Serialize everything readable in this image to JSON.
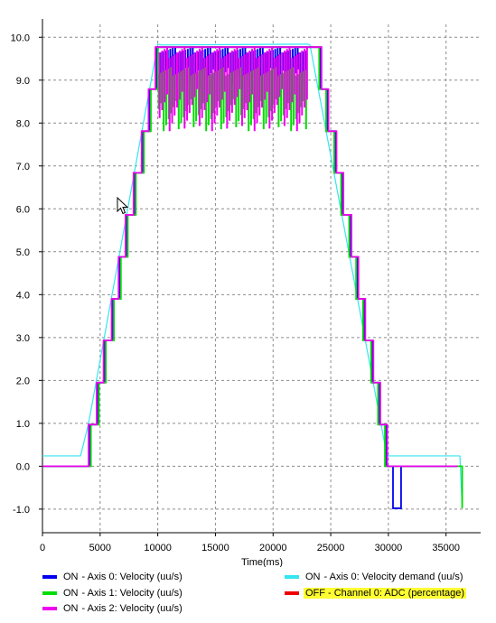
{
  "chart_data": {
    "type": "line",
    "xlabel": "Time(ms)",
    "xlim": [
      0,
      38000
    ],
    "ylim": [
      -1.55,
      10.3
    ],
    "x_ticks": [
      0,
      5000,
      10000,
      15000,
      20000,
      25000,
      30000,
      35000
    ],
    "y_ticks": [
      10.0,
      9.0,
      8.0,
      7.0,
      6.0,
      5.0,
      4.0,
      3.0,
      2.0,
      1.0,
      0.0,
      -1.0
    ],
    "y_tick_labels": [
      "10.0",
      "9.0",
      "8.0",
      "7.0",
      "6.0",
      "5.0",
      "4.0",
      "3.0",
      "2.0",
      "1.0",
      "0.0",
      "-1.0"
    ],
    "grid": true,
    "series": [
      {
        "name": "Axis 0: Velocity demand (uu/s)",
        "color": "#33e6f0",
        "x": [
          0,
          3300,
          4000,
          10000,
          10300,
          23000,
          23200,
          29800,
          30000,
          36200,
          36400
        ],
        "y": [
          0.24,
          0.24,
          1.0,
          9.84,
          9.82,
          9.84,
          9.82,
          0.35,
          0.24,
          0.24,
          -0.98
        ]
      },
      {
        "name": "Axis 0: Velocity (uu/s)",
        "color": "#0000ee",
        "x": [
          0,
          3300,
          4100,
          4800,
          5400,
          6100,
          6700,
          7300,
          8000,
          8700,
          9300,
          9900,
          23500,
          24100,
          24700,
          25400,
          26000,
          26700,
          27300,
          27900,
          28600,
          29200,
          29800,
          30400,
          31100,
          31500,
          36000
        ],
        "y": [
          0.0,
          0.0,
          0.97,
          1.95,
          2.93,
          3.9,
          4.88,
          5.86,
          6.84,
          7.81,
          8.79,
          9.77,
          9.77,
          8.79,
          7.81,
          6.84,
          5.86,
          4.88,
          3.9,
          2.93,
          1.95,
          0.97,
          0.0,
          -0.98,
          0.0,
          0.0,
          0.0
        ]
      },
      {
        "name": "Axis 1: Velocity (uu/s)",
        "color": "#00dd00",
        "x": [
          0,
          3400,
          4200,
          4900,
          5500,
          6200,
          6800,
          7400,
          8100,
          8800,
          9400,
          10000,
          23400,
          24000,
          24600,
          25300,
          25900,
          26600,
          27200,
          27800,
          28500,
          29100,
          29700,
          36100,
          36400
        ],
        "y": [
          0.0,
          0.0,
          0.97,
          1.95,
          2.93,
          3.9,
          4.88,
          5.86,
          6.84,
          7.81,
          8.79,
          9.77,
          9.77,
          8.79,
          7.81,
          6.84,
          5.86,
          4.88,
          3.9,
          2.93,
          1.95,
          0.97,
          0.0,
          0.0,
          -0.98
        ]
      },
      {
        "name": "Axis 2: Velocity (uu/s)",
        "color": "#ee00ee",
        "x": [
          0,
          3200,
          4000,
          4700,
          5300,
          6000,
          6600,
          7200,
          7900,
          8600,
          9200,
          9800,
          23600,
          24200,
          24800,
          25500,
          26100,
          26800,
          27400,
          28000,
          28700,
          29300,
          29900,
          36000
        ],
        "y": [
          0.0,
          0.0,
          0.97,
          1.95,
          2.93,
          3.9,
          4.88,
          5.86,
          6.84,
          7.81,
          8.79,
          9.77,
          9.77,
          8.79,
          7.81,
          6.84,
          5.86,
          4.88,
          3.9,
          2.93,
          1.95,
          0.97,
          0.0,
          0.0
        ]
      }
    ],
    "noise_bands": [
      {
        "color": "#0000ee",
        "x_from": 10000,
        "x_to": 23000,
        "y_from": 8.79,
        "y_to": 9.77
      },
      {
        "color": "#00dd00",
        "x_from": 10000,
        "x_to": 23000,
        "y_from": 7.81,
        "y_to": 9.3
      },
      {
        "color": "#ee00ee",
        "x_from": 10000,
        "x_to": 23000,
        "y_from": 7.81,
        "y_to": 9.77
      }
    ]
  },
  "legend": {
    "items": [
      {
        "state": "ON",
        "label": "- Axis 0: Velocity (uu/s)",
        "color": "#0000ee"
      },
      {
        "state": "ON",
        "label": "- Axis 1: Velocity (uu/s)",
        "color": "#00dd00"
      },
      {
        "state": "ON",
        "label": "- Axis 2: Velocity (uu/s)",
        "color": "#ee00ee"
      },
      {
        "state": "ON",
        "label": "- Axis 0: Velocity demand (uu/s)",
        "color": "#33e6f0"
      },
      {
        "state": "OFF",
        "label": "- Channel 0: ADC (percentage)",
        "color": "#ee0000"
      }
    ]
  }
}
